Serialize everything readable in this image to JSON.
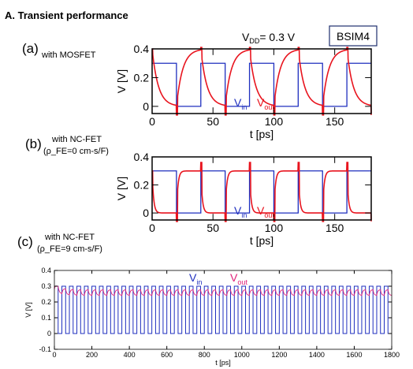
{
  "section_title": "A.  Transient performance",
  "supply_label": {
    "main": "V",
    "sub": "DD",
    "rest": "= 0.3 V"
  },
  "model_badge": "BSIM4",
  "colors": {
    "vin": "#1f2fbf",
    "vout": "#e8141e",
    "vout_c": "#e0207a"
  },
  "chart_data": [
    {
      "id": "a",
      "type": "line",
      "panel_label": "(a)",
      "subtitle_lines": [
        "with MOSFET"
      ],
      "xlabel": "t [ps]",
      "ylabel": "V  [V]",
      "xlim": [
        0,
        180
      ],
      "ylim": [
        -0.05,
        0.4
      ],
      "xticks": [
        0,
        50,
        100,
        150
      ],
      "xtick_labels": [
        "0",
        "50",
        "100",
        "150"
      ],
      "yticks": [
        0,
        0.2,
        0.4
      ],
      "ytick_labels": [
        "0",
        "0.2",
        "0.4"
      ],
      "square_wave": {
        "period_ps": 40,
        "high_start_ps": 0,
        "high_end_ps": 20,
        "low_v": 0,
        "high_v": 0.3
      },
      "vout_response": {
        "kind": "rc",
        "tau_ps": 5,
        "low_v": 0,
        "high_v": 0.4,
        "spike_v": 0.41,
        "undershoot_v": -0.06
      },
      "series": [
        {
          "name": "V",
          "sub": "in",
          "color": "#1f2fbf"
        },
        {
          "name": "V",
          "sub": "out",
          "color": "#e8141e"
        }
      ]
    },
    {
      "id": "b",
      "type": "line",
      "panel_label": "(b)",
      "subtitle_lines": [
        "with NC-FET",
        "(ρ_FE=0 cm-s/F)"
      ],
      "xlabel": "t [ps]",
      "ylabel": "V  [V]",
      "xlim": [
        0,
        180
      ],
      "ylim": [
        -0.05,
        0.4
      ],
      "xticks": [
        0,
        50,
        100,
        150
      ],
      "xtick_labels": [
        "0",
        "50",
        "100",
        "150"
      ],
      "yticks": [
        0,
        0.2,
        0.4
      ],
      "ytick_labels": [
        "0",
        "0.2",
        "0.4"
      ],
      "square_wave": {
        "period_ps": 40,
        "high_start_ps": 0,
        "high_end_ps": 20,
        "low_v": 0,
        "high_v": 0.3
      },
      "vout_response": {
        "kind": "fast",
        "tau_ps": 1.2,
        "low_v": 0,
        "high_v": 0.3,
        "spike_v": 0.36,
        "undershoot_v": -0.06
      },
      "series": [
        {
          "name": "V",
          "sub": "in",
          "color": "#1f2fbf"
        },
        {
          "name": "V",
          "sub": "out",
          "color": "#e8141e"
        }
      ]
    },
    {
      "id": "c",
      "type": "line",
      "panel_label": "(c)",
      "subtitle_lines": [
        "with NC-FET",
        "(ρ_FE=9 cm-s/F)"
      ],
      "xlabel": "t [ps]",
      "ylabel": "V  [V]",
      "xlim": [
        0,
        1800
      ],
      "ylim": [
        -0.1,
        0.4
      ],
      "xticks": [
        0,
        200,
        400,
        600,
        800,
        1000,
        1200,
        1400,
        1600,
        1800
      ],
      "xtick_labels": [
        "0",
        "200",
        "400",
        "600",
        "800",
        "1000",
        "1200",
        "1400",
        "1600",
        "1800"
      ],
      "yticks": [
        -0.1,
        0,
        0.1,
        0.2,
        0.3,
        0.4
      ],
      "ytick_labels": [
        "-0.1",
        "0",
        "0.1",
        "0.2",
        "0.3",
        "0.4"
      ],
      "square_wave": {
        "period_ps": 40,
        "high_start_ps": 0,
        "high_end_ps": 20,
        "low_v": 0,
        "high_v": 0.3
      },
      "vout_response": {
        "kind": "ripple",
        "mean_v": 0.26,
        "amplitude_v": 0.018,
        "start_v": 0.3
      },
      "series": [
        {
          "name": "V",
          "sub": "in",
          "color": "#1f2fbf"
        },
        {
          "name": "V",
          "sub": "out",
          "color": "#e0207a"
        }
      ]
    }
  ]
}
